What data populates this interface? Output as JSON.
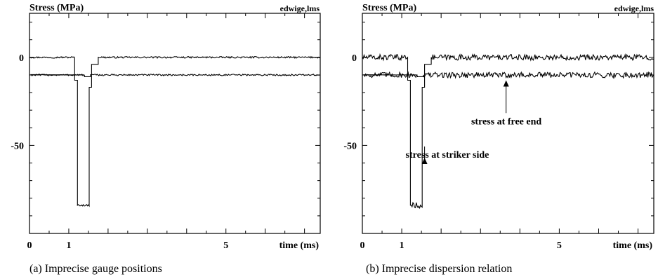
{
  "chart_data": [
    {
      "type": "line",
      "caption": "(a) Imprecise gauge positions",
      "ylabel": "Stress (MPa)",
      "xlabel": "time (ms)",
      "corner_label": "edwige,lms",
      "xlim": [
        0,
        7.4
      ],
      "ylim": [
        -100,
        25
      ],
      "x_ticks": [
        0,
        1,
        5
      ],
      "y_ticks": [
        0,
        -50
      ],
      "grid": false,
      "series": [
        {
          "style": "solid",
          "noise": 0.45,
          "points": [
            [
              0,
              0
            ],
            [
              1.15,
              0
            ],
            [
              1.15,
              -13
            ],
            [
              1.22,
              -13
            ],
            [
              1.22,
              -84
            ],
            [
              1.52,
              -84
            ],
            [
              1.52,
              -17
            ],
            [
              1.58,
              -17
            ],
            [
              1.58,
              -4
            ],
            [
              1.75,
              -4
            ],
            [
              1.75,
              0
            ],
            [
              7.4,
              0
            ]
          ]
        },
        {
          "style": "dashed",
          "noise": 0.45,
          "points": [
            [
              0,
              -10
            ],
            [
              1.4,
              -10
            ],
            [
              1.4,
              -11
            ],
            [
              1.55,
              -11
            ],
            [
              1.55,
              -10
            ],
            [
              7.4,
              -10
            ]
          ]
        }
      ],
      "annotations": []
    },
    {
      "type": "line",
      "caption": "(b) Imprecise dispersion relation",
      "ylabel": "Stress (MPa)",
      "xlabel": "time (ms)",
      "corner_label": "edwige,lms",
      "xlim": [
        0,
        7.4
      ],
      "ylim": [
        -100,
        25
      ],
      "x_ticks": [
        0,
        1,
        5
      ],
      "y_ticks": [
        0,
        -50
      ],
      "grid": false,
      "series": [
        {
          "style": "solid",
          "noise": 1.6,
          "points": [
            [
              0,
              0
            ],
            [
              1.15,
              0
            ],
            [
              1.15,
              -13
            ],
            [
              1.22,
              -13
            ],
            [
              1.22,
              -84
            ],
            [
              1.52,
              -84
            ],
            [
              1.52,
              -17
            ],
            [
              1.58,
              -17
            ],
            [
              1.58,
              -4
            ],
            [
              1.75,
              -4
            ],
            [
              1.75,
              0
            ],
            [
              7.4,
              0
            ]
          ]
        },
        {
          "style": "dashed",
          "noise": 1.6,
          "points": [
            [
              0,
              -10
            ],
            [
              1.4,
              -10
            ],
            [
              1.4,
              -11
            ],
            [
              1.55,
              -11
            ],
            [
              1.55,
              -10
            ],
            [
              7.4,
              -10
            ]
          ]
        }
      ],
      "annotations": [
        {
          "text": "stress at free end",
          "arrow_to": [
            3.65,
            -13
          ],
          "text_at": [
            3.55,
            -38
          ]
        },
        {
          "text": "stress at striker side",
          "arrow_to": [
            1.58,
            -57
          ],
          "text_at": [
            2.05,
            -57
          ]
        }
      ]
    }
  ]
}
